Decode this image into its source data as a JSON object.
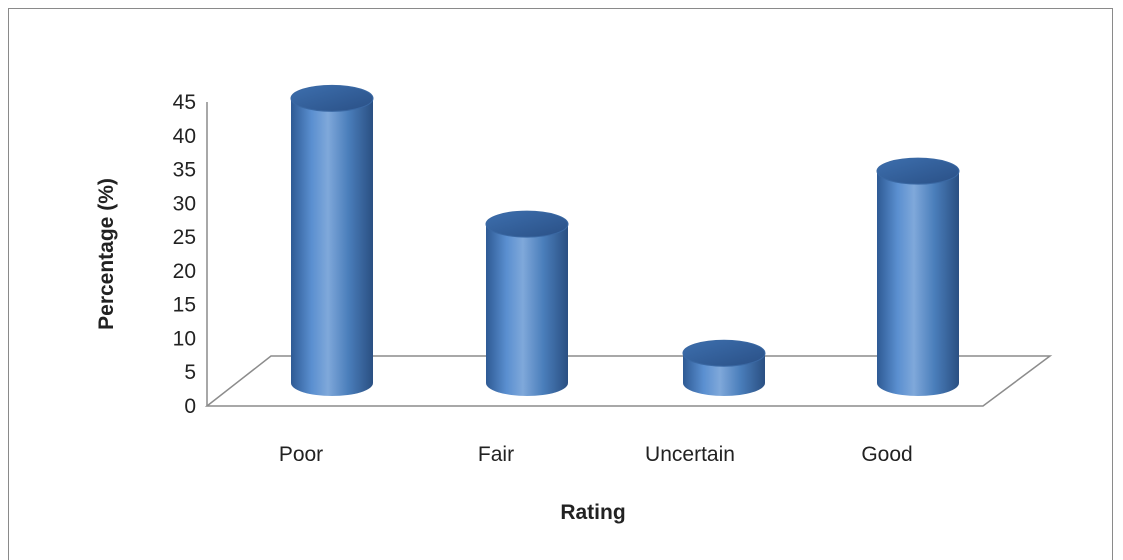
{
  "chart_data": {
    "type": "bar",
    "style": "3d-cylinder",
    "categories": [
      "Poor",
      "Fair",
      "Uncertain",
      "Good"
    ],
    "values": [
      43,
      24,
      4.5,
      32
    ],
    "xlabel": "Rating",
    "ylabel": "Percentage (%)",
    "ylim": [
      0,
      45
    ],
    "yticks": [
      0,
      5,
      10,
      15,
      20,
      25,
      30,
      35,
      40,
      45
    ],
    "grid": false,
    "legend": "none",
    "colors": {
      "bar": "#4a7ebb",
      "bar_light": "#7fa8da",
      "bar_dark": "#2c5287",
      "floor": "#9a9a9a"
    }
  }
}
